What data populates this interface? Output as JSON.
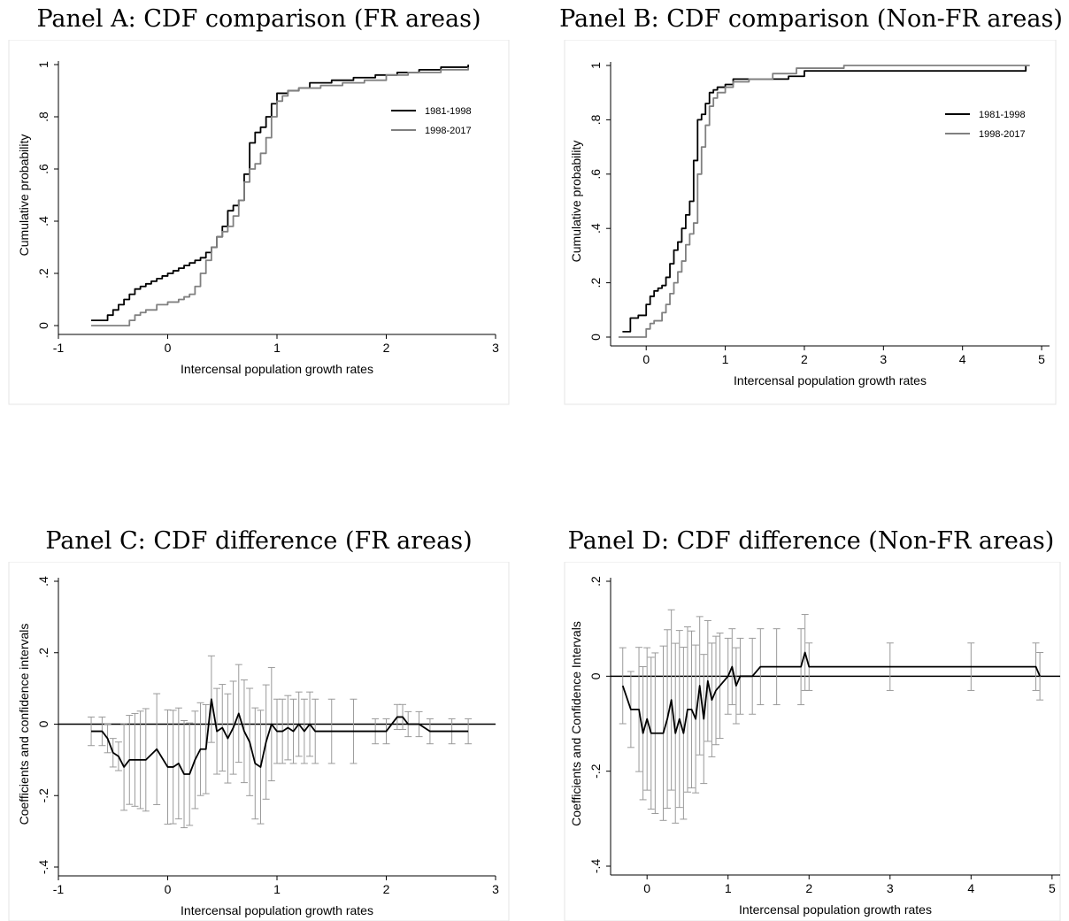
{
  "chart_data": [
    {
      "id": "A",
      "type": "line",
      "title": "Panel A: CDF comparison (FR areas)",
      "xlabel": "Intercensal population growth rates",
      "ylabel": "Cumulative probability",
      "xlim": [
        -1,
        3
      ],
      "ylim": [
        0,
        1
      ],
      "xticks": [
        "-1",
        "0",
        "1",
        "2",
        "3"
      ],
      "yticks": [
        "0",
        ".2",
        ".4",
        ".6",
        ".8",
        "1"
      ],
      "legend_position": "top-right",
      "series": [
        {
          "name": "1981-1998",
          "color": "#000000",
          "x": [
            -0.7,
            -0.6,
            -0.55,
            -0.5,
            -0.45,
            -0.4,
            -0.35,
            -0.3,
            -0.25,
            -0.2,
            -0.15,
            -0.1,
            -0.05,
            0.0,
            0.05,
            0.1,
            0.15,
            0.2,
            0.25,
            0.3,
            0.35,
            0.4,
            0.45,
            0.5,
            0.55,
            0.6,
            0.65,
            0.7,
            0.75,
            0.8,
            0.85,
            0.9,
            0.95,
            1.0,
            1.05,
            1.1,
            1.15,
            1.2,
            1.3,
            1.5,
            1.7,
            1.9,
            2.1,
            2.3,
            2.5,
            2.75
          ],
          "y": [
            0.02,
            0.02,
            0.04,
            0.06,
            0.08,
            0.1,
            0.12,
            0.14,
            0.15,
            0.16,
            0.17,
            0.18,
            0.19,
            0.2,
            0.21,
            0.22,
            0.23,
            0.24,
            0.25,
            0.26,
            0.28,
            0.3,
            0.34,
            0.38,
            0.44,
            0.46,
            0.48,
            0.58,
            0.7,
            0.74,
            0.76,
            0.8,
            0.85,
            0.89,
            0.89,
            0.9,
            0.9,
            0.91,
            0.93,
            0.94,
            0.95,
            0.96,
            0.97,
            0.98,
            0.99,
            1.0
          ]
        },
        {
          "name": "1998-2017",
          "color": "#808080",
          "x": [
            -0.7,
            -0.4,
            -0.35,
            -0.3,
            -0.25,
            -0.2,
            -0.1,
            0.0,
            0.1,
            0.15,
            0.2,
            0.25,
            0.3,
            0.35,
            0.4,
            0.45,
            0.5,
            0.55,
            0.6,
            0.65,
            0.7,
            0.75,
            0.8,
            0.85,
            0.9,
            0.95,
            1.0,
            1.05,
            1.1,
            1.2,
            1.4,
            1.6,
            1.8,
            2.0,
            2.2,
            2.5,
            2.75
          ],
          "y": [
            0.0,
            0.0,
            0.02,
            0.04,
            0.05,
            0.06,
            0.08,
            0.09,
            0.1,
            0.11,
            0.12,
            0.15,
            0.2,
            0.25,
            0.3,
            0.34,
            0.36,
            0.38,
            0.42,
            0.48,
            0.55,
            0.6,
            0.62,
            0.66,
            0.72,
            0.8,
            0.86,
            0.88,
            0.9,
            0.91,
            0.92,
            0.93,
            0.94,
            0.96,
            0.97,
            0.98,
            0.99
          ]
        }
      ]
    },
    {
      "id": "B",
      "type": "line",
      "title": "Panel B: CDF comparison (Non-FR areas)",
      "xlabel": "Intercensal population growth rates",
      "ylabel": "Cumulative probability",
      "xlim": [
        -0.45,
        5.1
      ],
      "ylim": [
        0,
        1
      ],
      "xticks": [
        "0",
        "1",
        "2",
        "3",
        "4",
        "5"
      ],
      "yticks": [
        "0",
        ".2",
        ".4",
        ".6",
        ".8",
        "1"
      ],
      "legend_position": "top-right",
      "series": [
        {
          "name": "1981-1998",
          "color": "#000000",
          "x": [
            -0.3,
            -0.2,
            -0.1,
            0.0,
            0.05,
            0.1,
            0.15,
            0.2,
            0.25,
            0.3,
            0.35,
            0.4,
            0.45,
            0.5,
            0.55,
            0.6,
            0.65,
            0.7,
            0.75,
            0.8,
            0.85,
            0.9,
            1.0,
            1.1,
            1.3,
            1.5,
            1.8,
            2.0,
            3.0,
            4.0,
            4.7,
            4.8
          ],
          "y": [
            0.02,
            0.07,
            0.08,
            0.12,
            0.15,
            0.17,
            0.18,
            0.19,
            0.22,
            0.27,
            0.32,
            0.35,
            0.4,
            0.45,
            0.5,
            0.65,
            0.8,
            0.82,
            0.86,
            0.9,
            0.91,
            0.92,
            0.93,
            0.95,
            0.95,
            0.95,
            0.96,
            0.98,
            0.98,
            0.98,
            0.98,
            1.0
          ]
        },
        {
          "name": "1998-2017",
          "color": "#808080",
          "x": [
            -0.35,
            -0.1,
            0.0,
            0.05,
            0.1,
            0.2,
            0.25,
            0.3,
            0.35,
            0.4,
            0.45,
            0.5,
            0.55,
            0.6,
            0.65,
            0.7,
            0.75,
            0.8,
            0.85,
            0.9,
            1.0,
            1.1,
            1.3,
            1.6,
            1.9,
            2.5,
            3.0,
            4.0,
            4.85
          ],
          "y": [
            0.0,
            0.0,
            0.03,
            0.05,
            0.06,
            0.09,
            0.12,
            0.16,
            0.2,
            0.24,
            0.28,
            0.34,
            0.38,
            0.42,
            0.6,
            0.7,
            0.78,
            0.85,
            0.88,
            0.9,
            0.92,
            0.94,
            0.95,
            0.97,
            0.99,
            1.0,
            1.0,
            1.0,
            1.0
          ]
        }
      ]
    },
    {
      "id": "C",
      "type": "line",
      "title": "Panel C: CDF difference (FR areas)",
      "xlabel": "Intercensal population growth rates",
      "ylabel": "Coefficients and confidence intervals",
      "xlim": [
        -1,
        3
      ],
      "ylim": [
        -0.4,
        0.4
      ],
      "xticks": [
        "-1",
        "0",
        "1",
        "2",
        "3"
      ],
      "yticks": [
        "-.4",
        "-.2",
        "0",
        ".2",
        ".4"
      ],
      "series": [
        {
          "name": "",
          "color": "#000000",
          "x": [
            -0.7,
            -0.6,
            -0.55,
            -0.5,
            -0.45,
            -0.4,
            -0.35,
            -0.3,
            -0.25,
            -0.2,
            -0.1,
            0.0,
            0.05,
            0.1,
            0.15,
            0.2,
            0.25,
            0.3,
            0.35,
            0.4,
            0.45,
            0.5,
            0.55,
            0.6,
            0.65,
            0.7,
            0.75,
            0.8,
            0.85,
            0.9,
            0.95,
            1.0,
            1.05,
            1.1,
            1.15,
            1.2,
            1.25,
            1.3,
            1.35,
            1.5,
            1.7,
            1.9,
            2.0,
            2.1,
            2.15,
            2.2,
            2.3,
            2.4,
            2.6,
            2.75
          ],
          "y": [
            -0.02,
            -0.02,
            -0.04,
            -0.08,
            -0.09,
            -0.12,
            -0.1,
            -0.1,
            -0.1,
            -0.1,
            -0.07,
            -0.12,
            -0.12,
            -0.11,
            -0.14,
            -0.14,
            -0.1,
            -0.07,
            -0.07,
            0.07,
            -0.02,
            -0.01,
            -0.04,
            -0.01,
            0.03,
            -0.02,
            -0.05,
            -0.11,
            -0.12,
            -0.05,
            0.0,
            -0.02,
            -0.02,
            -0.01,
            -0.02,
            0.0,
            -0.02,
            0.0,
            -0.02,
            -0.02,
            -0.02,
            -0.02,
            -0.02,
            0.02,
            0.02,
            0.0,
            0.0,
            -0.02,
            -0.02,
            -0.02
          ]
        }
      ]
    },
    {
      "id": "D",
      "type": "line",
      "title": "Panel D: CDF difference (Non-FR areas)",
      "xlabel": "Intercensal population growth rates",
      "ylabel": "Coefficients and Confidence Intervals",
      "xlim": [
        -0.45,
        5.1
      ],
      "ylim": [
        -0.4,
        0.2
      ],
      "xticks": [
        "0",
        "1",
        "2",
        "3",
        "4",
        "5"
      ],
      "yticks": [
        "-.4",
        "-.2",
        "0",
        ".2"
      ],
      "series": [
        {
          "name": "",
          "color": "#000000",
          "x": [
            -0.3,
            -0.2,
            -0.1,
            -0.05,
            0.0,
            0.05,
            0.1,
            0.2,
            0.25,
            0.3,
            0.35,
            0.4,
            0.45,
            0.5,
            0.55,
            0.6,
            0.65,
            0.7,
            0.75,
            0.8,
            0.85,
            0.9,
            1.0,
            1.05,
            1.1,
            1.15,
            1.3,
            1.4,
            1.6,
            1.9,
            1.95,
            2.0,
            3.0,
            4.0,
            4.8,
            4.85
          ],
          "y": [
            -0.02,
            -0.07,
            -0.07,
            -0.12,
            -0.09,
            -0.12,
            -0.12,
            -0.12,
            -0.09,
            -0.05,
            -0.12,
            -0.09,
            -0.12,
            -0.07,
            -0.07,
            -0.09,
            -0.02,
            -0.09,
            -0.01,
            -0.05,
            -0.03,
            -0.02,
            0.0,
            0.02,
            -0.02,
            0.0,
            0.0,
            0.02,
            0.02,
            0.02,
            0.05,
            0.02,
            0.02,
            0.02,
            0.02,
            0.0
          ]
        }
      ]
    }
  ]
}
